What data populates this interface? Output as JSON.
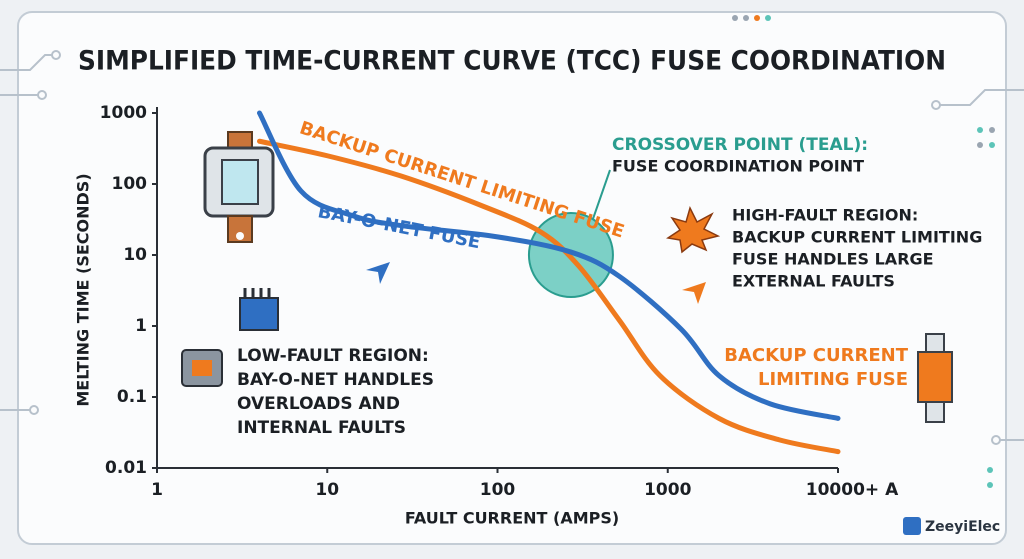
{
  "chart_data": {
    "type": "line",
    "title": "SIMPLIFIED TIME-CURRENT CURVE (TCC) FUSE COORDINATION",
    "x_label": "FAULT CURRENT (AMPS)",
    "y_label": "MELTING TIME (SECONDS)",
    "log_x": true,
    "log_y": true,
    "xlim": [
      1,
      10000
    ],
    "ylim": [
      0.01,
      1000
    ],
    "xticks": [
      1,
      10,
      100,
      1000,
      {
        "value": 10000,
        "label": "10000+ A"
      }
    ],
    "yticks": [
      1000,
      100,
      10,
      1,
      0.1,
      0.01
    ],
    "series": [
      {
        "name": "BACKUP CURRENT LIMITING FUSE",
        "color": "#ef7a1e",
        "x": [
          4,
          10,
          27,
          80,
          180,
          300,
          520,
          900,
          2000,
          4500,
          10000
        ],
        "values": [
          400,
          250,
          130,
          50,
          21,
          7,
          1.2,
          0.2,
          0.05,
          0.025,
          0.017
        ]
      },
      {
        "name": "BAY-O-NET FUSE",
        "color": "#2f6fc2",
        "x": [
          4,
          7,
          14,
          27,
          100,
          270,
          520,
          1200,
          2000,
          4000,
          10000
        ],
        "values": [
          1000,
          80,
          36,
          26,
          18,
          11,
          5,
          0.9,
          0.2,
          0.08,
          0.05
        ]
      }
    ],
    "crossover": {
      "x": 270,
      "y": 10,
      "color": "#5cc4b8",
      "lines": [
        "CROSSOVER POINT (TEAL):",
        "FUSE COORDINATION POINT"
      ]
    },
    "annotations": [
      {
        "lines": [
          "HIGH-FAULT REGION:",
          "BACKUP CURRENT LIMITING",
          "FUSE HANDLES LARGE",
          "EXTERNAL FAULTS"
        ]
      },
      {
        "lines": [
          "LOW-FAULT REGION:",
          "BAY-O-NET HANDLES",
          "OVERLOADS AND",
          "INTERNAL FAULTS"
        ]
      },
      {
        "lines": [
          "BACKUP CURRENT",
          "LIMITING FUSE"
        ]
      }
    ],
    "brand": "ZeeyiElec"
  }
}
